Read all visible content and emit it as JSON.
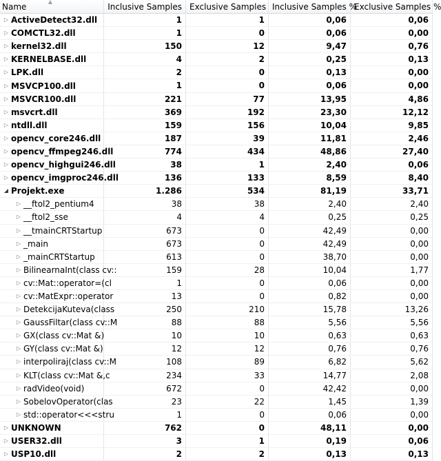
{
  "columns": {
    "name": "Name",
    "inclusive_samples": "Inclusive Samples",
    "exclusive_samples": "Exclusive Samples",
    "inclusive_pct": "Inclusive Samples %",
    "exclusive_pct": "Exclusive Samples %"
  },
  "rows": [
    {
      "name": "ActiveDetect32.dll",
      "inc": "1",
      "exc": "1",
      "incp": "0,06",
      "excp": "0,06",
      "level": 0,
      "expanded": false
    },
    {
      "name": "COMCTL32.dll",
      "inc": "1",
      "exc": "0",
      "incp": "0,06",
      "excp": "0,00",
      "level": 0,
      "expanded": false
    },
    {
      "name": "kernel32.dll",
      "inc": "150",
      "exc": "12",
      "incp": "9,47",
      "excp": "0,76",
      "level": 0,
      "expanded": false
    },
    {
      "name": "KERNELBASE.dll",
      "inc": "4",
      "exc": "2",
      "incp": "0,25",
      "excp": "0,13",
      "level": 0,
      "expanded": false
    },
    {
      "name": "LPK.dll",
      "inc": "2",
      "exc": "0",
      "incp": "0,13",
      "excp": "0,00",
      "level": 0,
      "expanded": false
    },
    {
      "name": "MSVCP100.dll",
      "inc": "1",
      "exc": "0",
      "incp": "0,06",
      "excp": "0,00",
      "level": 0,
      "expanded": false
    },
    {
      "name": "MSVCR100.dll",
      "inc": "221",
      "exc": "77",
      "incp": "13,95",
      "excp": "4,86",
      "level": 0,
      "expanded": false
    },
    {
      "name": "msvcrt.dll",
      "inc": "369",
      "exc": "192",
      "incp": "23,30",
      "excp": "12,12",
      "level": 0,
      "expanded": false
    },
    {
      "name": "ntdll.dll",
      "inc": "159",
      "exc": "156",
      "incp": "10,04",
      "excp": "9,85",
      "level": 0,
      "expanded": false
    },
    {
      "name": "opencv_core246.dll",
      "inc": "187",
      "exc": "39",
      "incp": "11,81",
      "excp": "2,46",
      "level": 0,
      "expanded": false
    },
    {
      "name": "opencv_ffmpeg246.dll",
      "inc": "774",
      "exc": "434",
      "incp": "48,86",
      "excp": "27,40",
      "level": 0,
      "expanded": false
    },
    {
      "name": "opencv_highgui246.dll",
      "inc": "38",
      "exc": "1",
      "incp": "2,40",
      "excp": "0,06",
      "level": 0,
      "expanded": false
    },
    {
      "name": "opencv_imgproc246.dll",
      "inc": "136",
      "exc": "133",
      "incp": "8,59",
      "excp": "8,40",
      "level": 0,
      "expanded": false
    },
    {
      "name": "Projekt.exe",
      "inc": "1.286",
      "exc": "534",
      "incp": "81,19",
      "excp": "33,71",
      "level": 0,
      "expanded": true
    },
    {
      "name": "__ftol2_pentium4",
      "inc": "38",
      "exc": "38",
      "incp": "2,40",
      "excp": "2,40",
      "level": 1,
      "expanded": false
    },
    {
      "name": "__ftol2_sse",
      "inc": "4",
      "exc": "4",
      "incp": "0,25",
      "excp": "0,25",
      "level": 1,
      "expanded": false
    },
    {
      "name": "__tmainCRTStartup",
      "inc": "673",
      "exc": "0",
      "incp": "42,49",
      "excp": "0,00",
      "level": 1,
      "expanded": false
    },
    {
      "name": "_main",
      "inc": "673",
      "exc": "0",
      "incp": "42,49",
      "excp": "0,00",
      "level": 1,
      "expanded": false
    },
    {
      "name": "_mainCRTStartup",
      "inc": "613",
      "exc": "0",
      "incp": "38,70",
      "excp": "0,00",
      "level": 1,
      "expanded": false
    },
    {
      "name": "BilinearnaInt(class cv::",
      "inc": "159",
      "exc": "28",
      "incp": "10,04",
      "excp": "1,77",
      "level": 1,
      "expanded": false
    },
    {
      "name": "cv::Mat::operator=(cl",
      "inc": "1",
      "exc": "0",
      "incp": "0,06",
      "excp": "0,00",
      "level": 1,
      "expanded": false
    },
    {
      "name": "cv::MatExpr::operator",
      "inc": "13",
      "exc": "0",
      "incp": "0,82",
      "excp": "0,00",
      "level": 1,
      "expanded": false
    },
    {
      "name": "DetekcijaKuteva(class",
      "inc": "250",
      "exc": "210",
      "incp": "15,78",
      "excp": "13,26",
      "level": 1,
      "expanded": false
    },
    {
      "name": "GaussFiltar(class cv::M",
      "inc": "88",
      "exc": "88",
      "incp": "5,56",
      "excp": "5,56",
      "level": 1,
      "expanded": false
    },
    {
      "name": "GX(class cv::Mat &)",
      "inc": "10",
      "exc": "10",
      "incp": "0,63",
      "excp": "0,63",
      "level": 1,
      "expanded": false
    },
    {
      "name": "GY(class cv::Mat &)",
      "inc": "12",
      "exc": "12",
      "incp": "0,76",
      "excp": "0,76",
      "level": 1,
      "expanded": false
    },
    {
      "name": "interpoliraj(class cv::M",
      "inc": "108",
      "exc": "89",
      "incp": "6,82",
      "excp": "5,62",
      "level": 1,
      "expanded": false
    },
    {
      "name": "KLT(class cv::Mat &,c",
      "inc": "234",
      "exc": "33",
      "incp": "14,77",
      "excp": "2,08",
      "level": 1,
      "expanded": false
    },
    {
      "name": "radVideo(void)",
      "inc": "672",
      "exc": "0",
      "incp": "42,42",
      "excp": "0,00",
      "level": 1,
      "expanded": false
    },
    {
      "name": "SobelovOperator(clas",
      "inc": "23",
      "exc": "22",
      "incp": "1,45",
      "excp": "1,39",
      "level": 1,
      "expanded": false
    },
    {
      "name": "std::operator<<<stru",
      "inc": "1",
      "exc": "0",
      "incp": "0,06",
      "excp": "0,00",
      "level": 1,
      "expanded": false
    },
    {
      "name": "UNKNOWN",
      "inc": "762",
      "exc": "0",
      "incp": "48,11",
      "excp": "0,00",
      "level": 0,
      "expanded": false
    },
    {
      "name": "USER32.dll",
      "inc": "3",
      "exc": "1",
      "incp": "0,19",
      "excp": "0,06",
      "level": 0,
      "expanded": false
    },
    {
      "name": "USP10.dll",
      "inc": "2",
      "exc": "2",
      "incp": "0,13",
      "excp": "0,13",
      "level": 0,
      "expanded": false
    }
  ],
  "icons": {
    "collapsed": "triangle-right-icon",
    "expanded": "triangle-down-icon",
    "sort": "sort-up-icon"
  }
}
